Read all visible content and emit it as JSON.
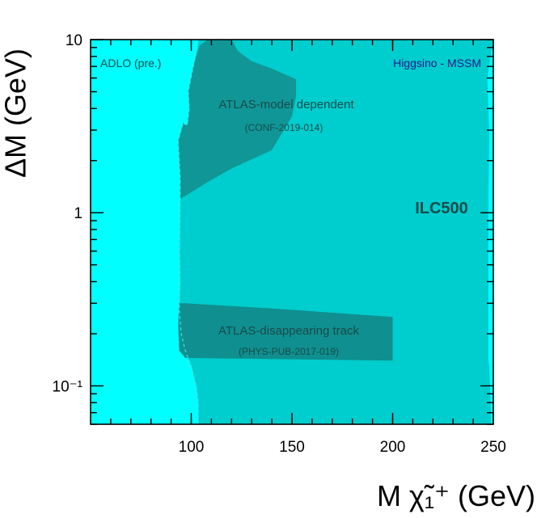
{
  "chart_data": {
    "type": "area",
    "xlabel": "M χ̃₁⁺ (GeV)",
    "ylabel": "ΔM (GeV)",
    "xlim": [
      50,
      250
    ],
    "ylim": [
      0.06,
      10
    ],
    "yscale": "log",
    "x_ticks": [
      100,
      150,
      200,
      250
    ],
    "y_ticks": [
      {
        "value": 10,
        "label": "10"
      },
      {
        "value": 1,
        "label": "1"
      },
      {
        "value": 0.1,
        "label": "10⁻¹"
      }
    ],
    "colors": {
      "adlo": "#00ffff",
      "ilc500": "#00cdcd",
      "atlas_model": "#109696",
      "atlas_track": "#0f8f8f",
      "dashed_line": "#4fd8d8",
      "text_dark": "#1a4a4a",
      "text_title": "#2a1a8a"
    },
    "annotations": {
      "adlo": "ADLO (pre.)",
      "model_title": "Higgsino - MSSM",
      "ilc": "ILC500",
      "atlas_model": "ATLAS-model dependent",
      "atlas_model_ref": "(CONF-2019-014)",
      "atlas_track": "ATLAS-disappearing track",
      "atlas_track_ref": "(PHYS-PUB-2017-019)"
    },
    "regions": [
      {
        "name": "adlo",
        "points": [
          [
            50,
            0.06
          ],
          [
            50,
            10
          ],
          [
            250,
            10
          ],
          [
            250,
            0.06
          ]
        ]
      },
      {
        "name": "ilc500",
        "points": [
          [
            103.5,
            0.06
          ],
          [
            103.5,
            0.08
          ],
          [
            102.5,
            0.1
          ],
          [
            100,
            0.13
          ],
          [
            97,
            0.16
          ],
          [
            95,
            0.2
          ],
          [
            94,
            0.28
          ],
          [
            94.5,
            0.4
          ],
          [
            94.2,
            0.6
          ],
          [
            94.5,
            1
          ],
          [
            94.5,
            1.6
          ],
          [
            93.5,
            2.6
          ],
          [
            96,
            3.3
          ],
          [
            98,
            3.2
          ],
          [
            99,
            4
          ],
          [
            98.5,
            5
          ],
          [
            101,
            7
          ],
          [
            103,
            9
          ],
          [
            103.5,
            10
          ],
          [
            250,
            10
          ],
          [
            247,
            6
          ],
          [
            248,
            2.8
          ],
          [
            247.5,
            1
          ],
          [
            247.5,
            0.14
          ],
          [
            248,
            0.13
          ],
          [
            249,
            0.06
          ]
        ]
      },
      {
        "name": "atlas_model",
        "points": [
          [
            94.5,
            1.2
          ],
          [
            94.5,
            1.6
          ],
          [
            93.5,
            2.6
          ],
          [
            96,
            3.3
          ],
          [
            98,
            3.2
          ],
          [
            99,
            4
          ],
          [
            98.5,
            5
          ],
          [
            101,
            7
          ],
          [
            104,
            9.2
          ],
          [
            108,
            10
          ],
          [
            120,
            10
          ],
          [
            123,
            8.6
          ],
          [
            130,
            7.5
          ],
          [
            140,
            6.8
          ],
          [
            152,
            5.9
          ],
          [
            152,
            4.7
          ],
          [
            150,
            3.6
          ],
          [
            140,
            2.3
          ],
          [
            120,
            1.8
          ],
          [
            108,
            1.5
          ]
        ]
      },
      {
        "name": "atlas_track",
        "points": [
          [
            94,
            0.3
          ],
          [
            97,
            0.3
          ],
          [
            140,
            0.28
          ],
          [
            200,
            0.25
          ],
          [
            200,
            0.14
          ],
          [
            97,
            0.145
          ],
          [
            94,
            0.16
          ],
          [
            93.5,
            0.22
          ]
        ]
      }
    ],
    "dashed_boundary": [
      [
        103.5,
        0.06
      ],
      [
        103.5,
        0.08
      ],
      [
        102.5,
        0.1
      ],
      [
        100,
        0.13
      ],
      [
        97,
        0.16
      ],
      [
        95,
        0.2
      ],
      [
        94,
        0.28
      ],
      [
        94.5,
        0.4
      ],
      [
        94.2,
        0.6
      ],
      [
        94.5,
        1
      ],
      [
        94.5,
        1.6
      ],
      [
        93.5,
        2.6
      ],
      [
        96,
        3.3
      ],
      [
        98,
        3.2
      ],
      [
        99,
        4
      ],
      [
        98.5,
        5
      ],
      [
        101,
        7
      ],
      [
        103,
        9
      ],
      [
        103.5,
        10
      ]
    ]
  }
}
